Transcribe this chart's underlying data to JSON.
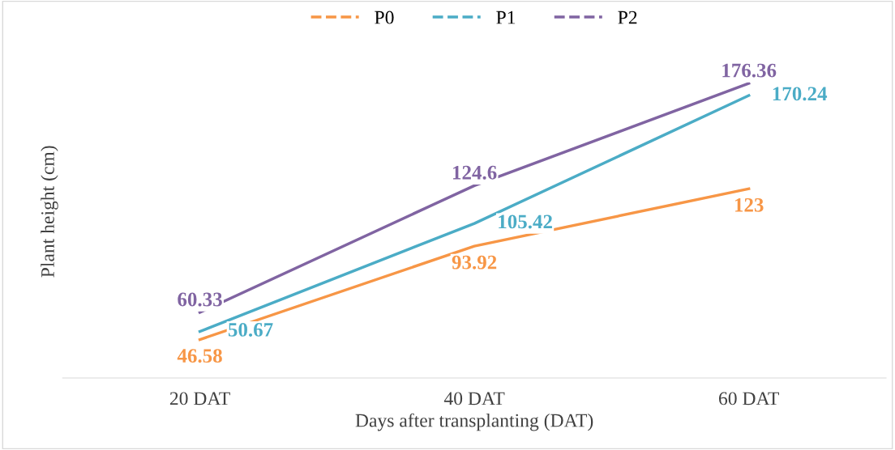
{
  "chart_data": {
    "type": "line",
    "xlabel": "Days after transplanting (DAT)",
    "ylabel": "Plant height (cm)",
    "categories": [
      "20 DAT",
      "40 DAT",
      "60 DAT"
    ],
    "series": [
      {
        "name": "P0",
        "color": "#f79646",
        "values": [
          46.58,
          93.92,
          123
        ]
      },
      {
        "name": "P1",
        "color": "#4bacc6",
        "values": [
          50.67,
          105.42,
          170.24
        ]
      },
      {
        "name": "P2",
        "color": "#8064a2",
        "values": [
          60.33,
          124.6,
          176.36
        ]
      }
    ],
    "data_labels": true,
    "legend": "top",
    "grid": false,
    "marker": "none",
    "line_style": "solid",
    "tick_labels": "x"
  }
}
